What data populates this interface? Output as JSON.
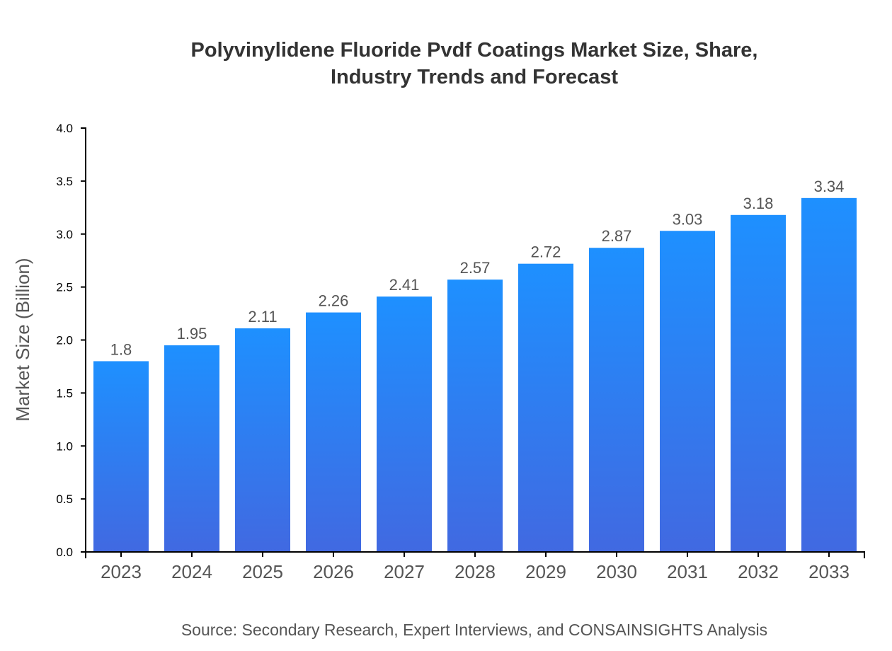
{
  "chart_data": {
    "type": "bar",
    "title_lines": [
      "Polyvinylidene Fluoride Pvdf Coatings Market Size, Share,",
      "Industry Trends and Forecast"
    ],
    "xlabel": "",
    "ylabel": "Market Size (Billion)",
    "categories": [
      "2023",
      "2024",
      "2025",
      "2026",
      "2027",
      "2028",
      "2029",
      "2030",
      "2031",
      "2032",
      "2033"
    ],
    "values": [
      1.8,
      1.95,
      2.11,
      2.26,
      2.41,
      2.57,
      2.72,
      2.87,
      3.03,
      3.18,
      3.34
    ],
    "data_labels": [
      "1.8",
      "1.95",
      "2.11",
      "2.26",
      "2.41",
      "2.57",
      "2.72",
      "2.87",
      "3.03",
      "3.18",
      "3.34"
    ],
    "ylim": [
      0,
      4.0
    ],
    "yticks": [
      "0.0",
      "0.5",
      "1.0",
      "1.5",
      "2.0",
      "2.5",
      "3.0",
      "3.5",
      "4.0"
    ],
    "grid": false,
    "colors": {
      "bar_top": "#1e90ff",
      "bar_bottom": "#4169e1"
    },
    "source": "Source: Secondary Research, Expert Interviews, and CONSAINSIGHTS Analysis"
  }
}
